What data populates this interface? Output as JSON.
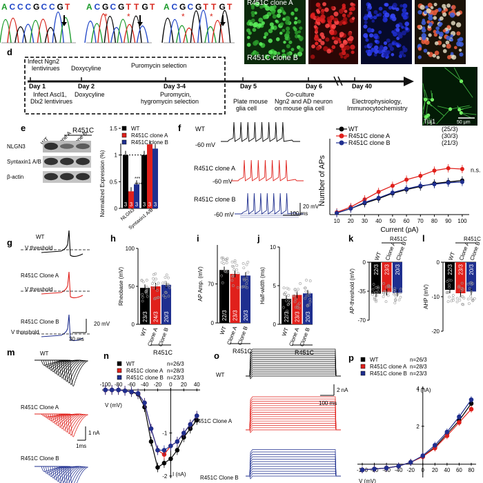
{
  "panels": {
    "d": "d",
    "e": "e",
    "f": "f",
    "g": "g",
    "h": "h",
    "i": "i",
    "j": "j",
    "k": "k",
    "l": "l",
    "m": "m",
    "n": "n",
    "o": "o",
    "p": "p"
  },
  "top_strip": {
    "seq1": [
      "A",
      "C",
      "C",
      "C",
      "G",
      "C",
      "C",
      "G",
      "T"
    ],
    "seq2": [
      "A",
      "C",
      "G",
      "C",
      "G",
      "T",
      "T",
      "G",
      "T"
    ],
    "seq3": [
      "A",
      "C",
      "G",
      "C",
      "G",
      "T",
      "T",
      "G",
      "T"
    ],
    "clone_a_label": "R451C clone A",
    "clone_b_label": "R451C clone B"
  },
  "timeline": {
    "above": {
      "infect": "Infect Ngn2",
      "infect2": "lentivirues",
      "dox": "Doxycyline",
      "puro": "Puromycin selection"
    },
    "days": {
      "d1": "Day 1",
      "d2": "Day 2",
      "d34": "Day 3-4",
      "d5": "Day 5",
      "d6": "Day 6",
      "d40": "Day 40"
    },
    "below": {
      "d1a": "Infect Ascl1,",
      "d1b": "Dlx2 lentivirues",
      "d2": "Doxycyline",
      "d34a": "Puromycin,",
      "d34b": "hygromycin selection",
      "d5a": "Plate mouse",
      "d5b": "glia cell",
      "d6a": "Co-culture",
      "d6b": "Ngn2 and AD neuron",
      "d6c": "on mouse glia cell",
      "d40a": "Electrophysiology,",
      "d40b": "Immunocytochemistry"
    },
    "tuj1": "Tuj1",
    "scale": "50 μm"
  },
  "panel_e": {
    "header": "R451C",
    "lanes": [
      "WT",
      "clone A",
      "clone B"
    ],
    "rows": [
      "NLGN3",
      "Syntaxin1 A/B",
      "β-actin"
    ],
    "legend": [
      "WT",
      "R451C clone A",
      "R451C clone B"
    ],
    "ylabel": "Normalized Expression (%)",
    "yticks": [
      "0",
      "0.5",
      "1",
      "1.5"
    ],
    "xcats": [
      "NLGN3",
      "Syntaxin1 A/B"
    ],
    "ns": [
      "3",
      "3",
      "3",
      "3",
      "3",
      "3"
    ],
    "stars": [
      "****",
      "***"
    ]
  },
  "panel_f": {
    "trace_labels": [
      "WT",
      "R451C clone A",
      "R451C clone B"
    ],
    "vm": "-60 mV",
    "scale_v": "20 mV",
    "scale_t": "100 ms",
    "legend": [
      {
        "name": "WT",
        "n": "(25/3)",
        "color": "#000000"
      },
      {
        "name": "R451C clone A",
        "n": "(30/3)",
        "color": "#e0201b"
      },
      {
        "name": "R451C clone B",
        "n": "(21/3)",
        "color": "#1f2f8f"
      }
    ],
    "ylabel": "Number of APs",
    "xlabel": "Current (pA)",
    "ns_label": "n.s."
  },
  "panel_g": {
    "labels": [
      "WT",
      "R451C Clone A",
      "R451C Clone B"
    ],
    "threshold": "V threshold",
    "scale_v": "20 mV",
    "scale_t": "30 ms"
  },
  "small_bars": {
    "h": {
      "ylabel": "Rheobase (mV)",
      "yticks": [
        "0",
        "50",
        "100"
      ],
      "ns": [
        "23/3",
        "24/3",
        "20/3"
      ]
    },
    "i": {
      "ylabel": "AP Amp. (mV)",
      "yticks": [
        "0",
        "70"
      ],
      "ns": [
        "22/3",
        "23/3",
        "20/3"
      ]
    },
    "j": {
      "ylabel": "Half-width (ms)",
      "yticks": [
        "0",
        "5",
        "10"
      ],
      "ns": [
        "22/3",
        "23/3",
        "20/3"
      ]
    },
    "k": {
      "ylabel": "AP-threshold (mV)",
      "yticks": [
        "0",
        "-35",
        "-70"
      ],
      "ns": [
        "22/3",
        "23/3",
        "20/3"
      ]
    },
    "l": {
      "ylabel": "AHP (mV)",
      "yticks": [
        "0",
        "-10",
        "-20"
      ],
      "ns": [
        "22/3",
        "23/3",
        "20/3"
      ]
    },
    "xcats": [
      "WT",
      "Clone A",
      "Clone B"
    ],
    "group": "R451C"
  },
  "panel_m": {
    "labels": [
      "WT",
      "R451C Clone A",
      "R451C Clone B"
    ],
    "scale_i": "1 nA",
    "scale_t": "1ms"
  },
  "panel_n": {
    "legend": [
      {
        "name": "WT",
        "n": "n=26/3"
      },
      {
        "name": "R451C clone A",
        "n": "n=28/3"
      },
      {
        "name": "R451C clone B",
        "n": "n=23/3"
      }
    ],
    "xticks": [
      "-100",
      "-80",
      "-60",
      "-40",
      "-20",
      "0",
      "20",
      "40"
    ],
    "yticks": [
      "-1",
      "-2"
    ],
    "xlabel": "V (mV)",
    "ylabel": "I (nA)"
  },
  "panel_o": {
    "labels": [
      "WT",
      "R451C Clone A",
      "R451C Clone B"
    ],
    "scale_i": "2 nA",
    "scale_t": "100 ms"
  },
  "panel_p": {
    "legend": [
      {
        "name": "WT",
        "n": "n=26/3"
      },
      {
        "name": "R451C clone A",
        "n": "n=28/3"
      },
      {
        "name": "R451C clone B",
        "n": "n=23/3"
      }
    ],
    "xticks": [
      "-100",
      "-80",
      "-60",
      "-40",
      "-20",
      "0",
      "20",
      "40",
      "60",
      "80"
    ],
    "yticks": [
      "2",
      "4"
    ],
    "ylabel": "I (nA)",
    "xlabel": "V (mV)"
  },
  "chart_data": [
    {
      "type": "bar",
      "panel": "e",
      "categories": [
        "NLGN3",
        "Syntaxin1 A/B"
      ],
      "series": [
        {
          "name": "WT",
          "values": [
            1.0,
            1.0
          ]
        },
        {
          "name": "R451C clone A",
          "values": [
            0.32,
            1.2
          ]
        },
        {
          "name": "R451C clone B",
          "values": [
            0.45,
            1.12
          ]
        }
      ],
      "ylabel": "Normalized Expression (%)",
      "ylim": [
        0,
        1.5
      ]
    },
    {
      "type": "line",
      "panel": "f",
      "x": [
        10,
        20,
        30,
        40,
        50,
        60,
        70,
        80,
        90,
        100
      ],
      "series": [
        {
          "name": "WT",
          "values": [
            0.2,
            0.8,
            1.5,
            2.1,
            2.8,
            3.3,
            3.7,
            4.1,
            4.3,
            4.5
          ]
        },
        {
          "name": "R451C clone A",
          "values": [
            0.3,
            1.0,
            2.0,
            3.0,
            3.8,
            4.6,
            5.1,
            5.8,
            6.1,
            6.0
          ]
        },
        {
          "name": "R451C clone B",
          "values": [
            0.2,
            0.8,
            1.6,
            2.2,
            2.9,
            3.4,
            3.8,
            4.0,
            4.2,
            4.3
          ]
        }
      ],
      "xlabel": "Current (pA)",
      "ylabel": "Number of APs",
      "xlim": [
        10,
        100
      ],
      "ylim": [
        0,
        10
      ]
    },
    {
      "type": "bar",
      "panel": "h",
      "categories": [
        "WT",
        "Clone A",
        "Clone B"
      ],
      "values": [
        48,
        50,
        52
      ],
      "ylabel": "Rheobase (mV)",
      "ylim": [
        0,
        100
      ]
    },
    {
      "type": "bar",
      "panel": "i",
      "categories": [
        "WT",
        "Clone A",
        "Clone B"
      ],
      "values": [
        95,
        88,
        85
      ],
      "ylabel": "AP Amp. (mV)",
      "ylim": [
        0,
        140
      ]
    },
    {
      "type": "bar",
      "panel": "j",
      "categories": [
        "WT",
        "Clone A",
        "Clone B"
      ],
      "values": [
        3.3,
        3.8,
        4.0
      ],
      "ylabel": "Half-width (ms)",
      "ylim": [
        0,
        10
      ]
    },
    {
      "type": "bar",
      "panel": "k",
      "categories": [
        "WT",
        "Clone A",
        "Clone B"
      ],
      "values": [
        -38,
        -36,
        -37
      ],
      "ylabel": "AP-threshold (mV)",
      "ylim": [
        -70,
        0
      ]
    },
    {
      "type": "bar",
      "panel": "l",
      "categories": [
        "WT",
        "Clone A",
        "Clone B"
      ],
      "values": [
        -8,
        -9,
        -8.5
      ],
      "ylabel": "AHP (mV)",
      "ylim": [
        -20,
        0
      ]
    },
    {
      "type": "line",
      "panel": "n",
      "x": [
        -100,
        -90,
        -80,
        -70,
        -60,
        -50,
        -40,
        -30,
        -20,
        -10,
        0,
        10,
        20,
        30,
        40
      ],
      "series": [
        {
          "name": "WT",
          "values": [
            0,
            0,
            0,
            -0.02,
            -0.05,
            -0.1,
            -0.4,
            -1.2,
            -1.8,
            -1.7,
            -1.6,
            -1.4,
            -1.1,
            -0.9,
            -0.7
          ]
        },
        {
          "name": "R451C clone A",
          "values": [
            0,
            0,
            0,
            -0.02,
            -0.04,
            -0.08,
            -0.3,
            -0.9,
            -1.4,
            -1.5,
            -1.3,
            -1.2,
            -1.0,
            -0.8,
            -0.6
          ]
        },
        {
          "name": "R451C clone B",
          "values": [
            0,
            0,
            0,
            -0.02,
            -0.04,
            -0.08,
            -0.3,
            -0.9,
            -1.4,
            -1.4,
            -1.3,
            -1.2,
            -1.0,
            -0.8,
            -0.6
          ]
        }
      ],
      "xlabel": "V (mV)",
      "ylabel": "I (nA)",
      "xlim": [
        -100,
        40
      ],
      "ylim": [
        -2,
        0
      ]
    },
    {
      "type": "line",
      "panel": "p",
      "x": [
        -100,
        -80,
        -60,
        -40,
        -20,
        0,
        20,
        40,
        60,
        80
      ],
      "series": [
        {
          "name": "WT",
          "values": [
            -0.3,
            -0.25,
            -0.2,
            -0.1,
            0.1,
            0.4,
            0.9,
            1.6,
            2.3,
            3.2
          ]
        },
        {
          "name": "R451C clone A",
          "values": [
            -0.3,
            -0.25,
            -0.2,
            -0.1,
            0.1,
            0.4,
            0.85,
            1.5,
            2.2,
            2.9
          ]
        },
        {
          "name": "R451C clone B",
          "values": [
            -0.3,
            -0.25,
            -0.2,
            -0.1,
            0.1,
            0.45,
            1.0,
            1.7,
            2.5,
            3.4
          ]
        }
      ],
      "xlabel": "V (mV)",
      "ylabel": "I (nA)",
      "xlim": [
        -100,
        80
      ],
      "ylim": [
        -0.5,
        4
      ]
    }
  ]
}
